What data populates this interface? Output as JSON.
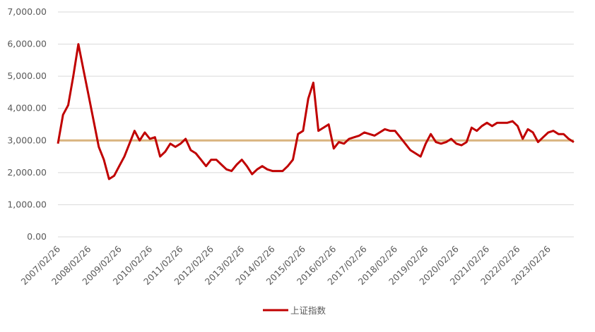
{
  "chart_data": {
    "type": "line",
    "categories": [
      "2007/02/26",
      null,
      null,
      null,
      null,
      null,
      "2008/02/26",
      null,
      null,
      null,
      null,
      null,
      "2009/02/26",
      null,
      null,
      null,
      null,
      null,
      "2010/02/26",
      null,
      null,
      null,
      null,
      null,
      "2011/02/26",
      null,
      null,
      null,
      null,
      null,
      "2012/02/26",
      null,
      null,
      null,
      null,
      null,
      "2013/02/26",
      null,
      null,
      null,
      null,
      null,
      "2014/02/26",
      null,
      null,
      null,
      null,
      null,
      "2015/02/26",
      null,
      null,
      null,
      null,
      null,
      "2016/02/26",
      null,
      null,
      null,
      null,
      null,
      "2017/02/26",
      null,
      null,
      null,
      null,
      null,
      "2018/02/26",
      null,
      null,
      null,
      null,
      null,
      "2019/02/26",
      null,
      null,
      null,
      null,
      null,
      "2020/02/26",
      null,
      null,
      null,
      null,
      null,
      "2021/02/26",
      null,
      null,
      null,
      null,
      null,
      "2022/02/26",
      null,
      null,
      null,
      null,
      null,
      "2023/02/26",
      null,
      null,
      null,
      null,
      null
    ],
    "series": [
      {
        "name": "上证指数",
        "color": "#c00000",
        "values": [
          2900,
          3800,
          4100,
          5000,
          6000,
          5200,
          4400,
          3600,
          2800,
          2400,
          1800,
          1900,
          2200,
          2500,
          2900,
          3300,
          3000,
          3250,
          3050,
          3100,
          2500,
          2650,
          2900,
          2800,
          2900,
          3050,
          2700,
          2600,
          2400,
          2200,
          2400,
          2400,
          2250,
          2100,
          2050,
          2250,
          2400,
          2200,
          1950,
          2100,
          2200,
          2100,
          2050,
          2050,
          2050,
          2200,
          2400,
          3200,
          3300,
          4300,
          4800,
          3300,
          3400,
          3500,
          2750,
          2950,
          2900,
          3050,
          3100,
          3150,
          3250,
          3200,
          3150,
          3250,
          3350,
          3300,
          3300,
          3100,
          2900,
          2700,
          2600,
          2500,
          2900,
          3200,
          2950,
          2900,
          2950,
          3050,
          2900,
          2850,
          2950,
          3400,
          3300,
          3450,
          3550,
          3450,
          3550,
          3550,
          3550,
          3600,
          3450,
          3050,
          3350,
          3250,
          2950,
          3100,
          3250,
          3300,
          3200,
          3200,
          3050,
          2950
        ]
      }
    ],
    "reference_lines": [
      {
        "value": 3000,
        "color": "#d9b47f"
      }
    ],
    "ylim": [
      0,
      7000
    ],
    "yticks": [
      {
        "value": 0,
        "label": "0.00"
      },
      {
        "value": 1000,
        "label": "1,000.00"
      },
      {
        "value": 2000,
        "label": "2,000.00"
      },
      {
        "value": 3000,
        "label": "3,000.00"
      },
      {
        "value": 4000,
        "label": "4,000.00"
      },
      {
        "value": 5000,
        "label": "5,000.00"
      },
      {
        "value": 6000,
        "label": "6,000.00"
      },
      {
        "value": 7000,
        "label": "7,000.00"
      }
    ],
    "grid": true
  }
}
